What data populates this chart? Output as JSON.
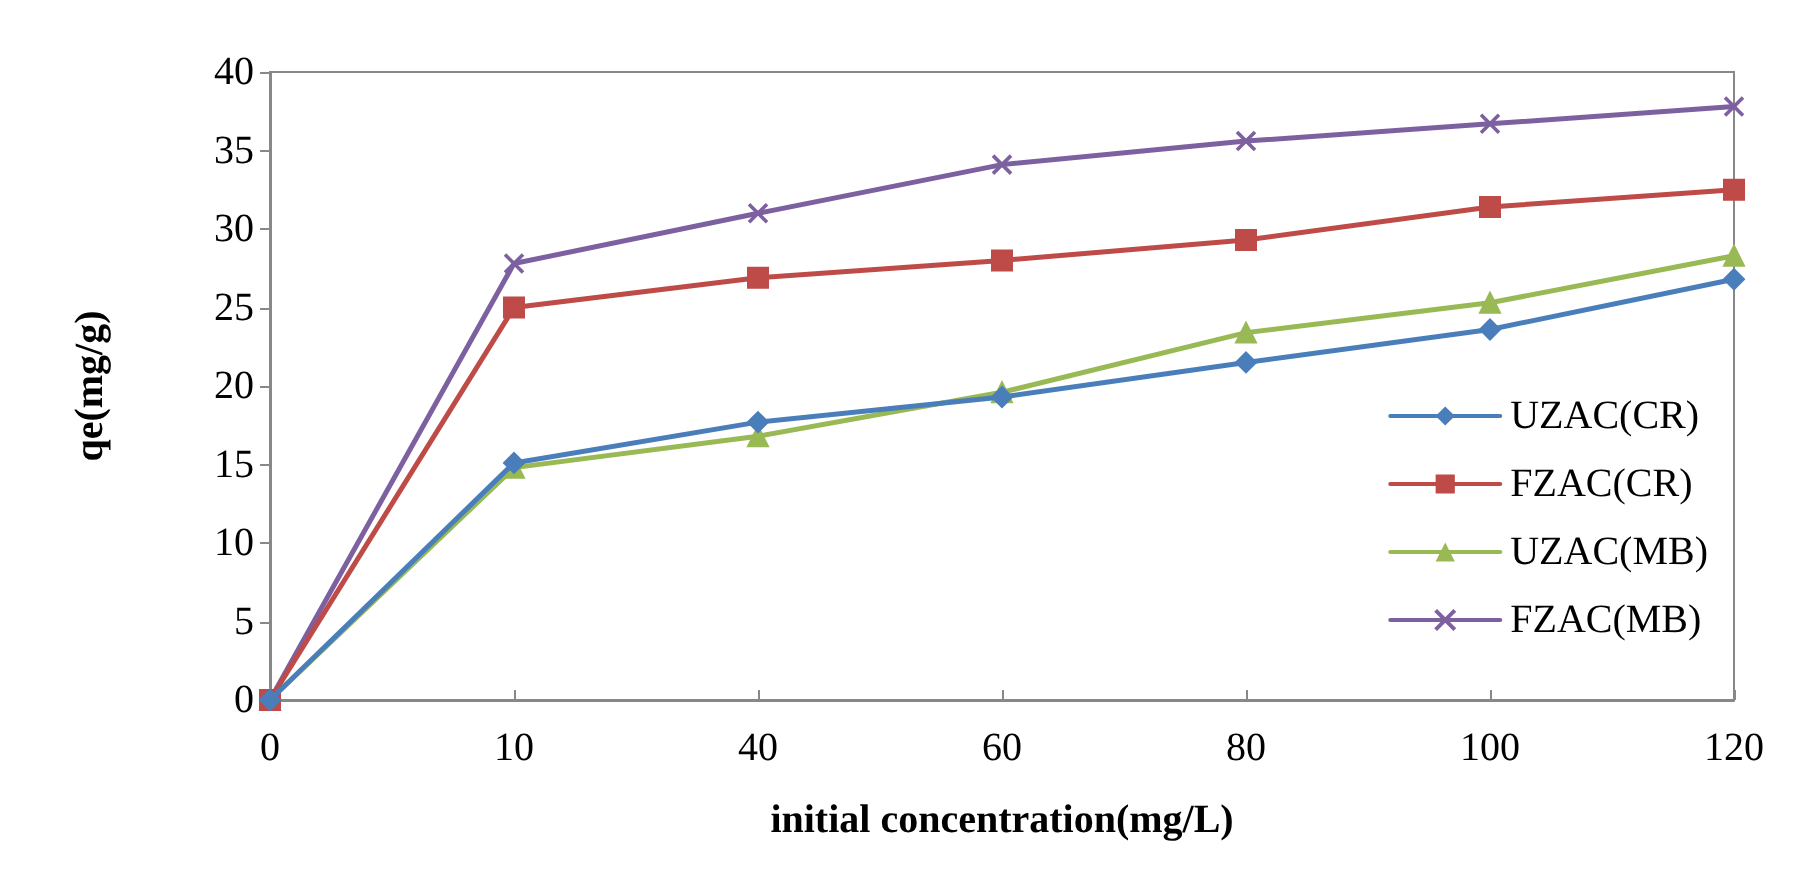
{
  "chart_data": {
    "type": "line",
    "xlabel": "initial concentration(mg/L)",
    "ylabel": "qe(mg/g)",
    "categories": [
      "0",
      "10",
      "40",
      "60",
      "80",
      "100",
      "120"
    ],
    "ylim": [
      0,
      40
    ],
    "yticks": [
      0,
      5,
      10,
      15,
      20,
      25,
      30,
      35,
      40
    ],
    "legend": "right",
    "series": [
      {
        "name": "UZAC(CR)",
        "color": "#4a7ebb",
        "marker": "diamond",
        "values": [
          0,
          15.1,
          17.7,
          19.3,
          21.5,
          23.6,
          26.8
        ]
      },
      {
        "name": "FZAC(CR)",
        "color": "#be4b48",
        "marker": "square",
        "values": [
          0,
          25.0,
          26.9,
          28.0,
          29.3,
          31.4,
          32.5
        ]
      },
      {
        "name": "UZAC(MB)",
        "color": "#98b954",
        "marker": "triangle",
        "values": [
          0,
          14.8,
          16.8,
          19.6,
          23.4,
          25.3,
          28.3
        ]
      },
      {
        "name": "FZAC(MB)",
        "color": "#7d60a0",
        "marker": "cross",
        "values": [
          0,
          27.8,
          31.0,
          34.1,
          35.6,
          36.7,
          37.8
        ]
      }
    ]
  }
}
